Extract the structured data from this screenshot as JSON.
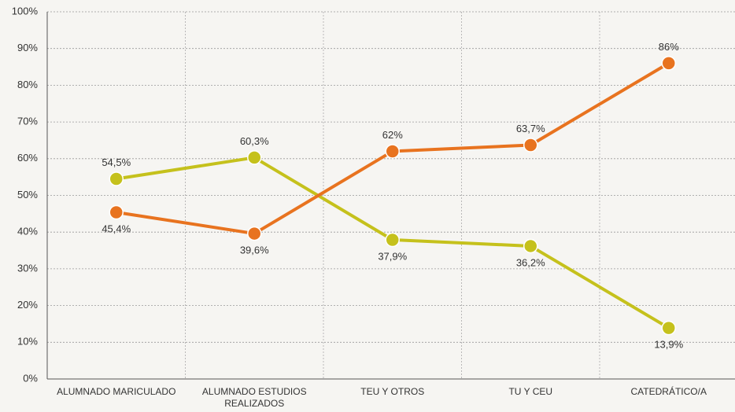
{
  "chart_data": {
    "type": "line",
    "categories": [
      "ALUMNADO MARICULADO",
      "ALUMNADO ESTUDIOS REALIZADOS",
      "TEU Y OTROS",
      "TU Y CEU",
      "CATEDRÁTICO/A"
    ],
    "series": [
      {
        "color": "#c5c11c",
        "values": [
          54.5,
          60.3,
          37.9,
          36.2,
          13.9
        ],
        "value_labels": [
          "54,5%",
          "60,3%",
          "37,9%",
          "36,2%",
          "13,9%"
        ]
      },
      {
        "color": "#e8731f",
        "values": [
          45.4,
          39.6,
          62,
          63.7,
          86
        ],
        "value_labels": [
          "45,4%",
          "39,6%",
          "62%",
          "63,7%",
          "86%"
        ]
      }
    ],
    "ylim": [
      0,
      100
    ],
    "yticks": [
      {
        "value": 0,
        "label": "0%"
      },
      {
        "value": 10,
        "label": "10%"
      },
      {
        "value": 20,
        "label": "20%"
      },
      {
        "value": 30,
        "label": "30%"
      },
      {
        "value": 40,
        "label": "40%"
      },
      {
        "value": 50,
        "label": "50%"
      },
      {
        "value": 60,
        "label": "60%"
      },
      {
        "value": 70,
        "label": "70%"
      },
      {
        "value": 80,
        "label": "80%"
      },
      {
        "value": 90,
        "label": "90%"
      },
      {
        "value": 100,
        "label": "100%"
      }
    ],
    "grid": true
  }
}
